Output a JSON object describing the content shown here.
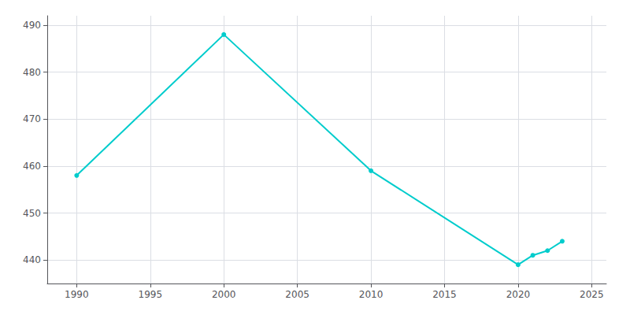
{
  "chart_data": {
    "type": "line",
    "x": [
      1990,
      2000,
      2010,
      2020,
      2021,
      2022,
      2023
    ],
    "values": [
      458,
      488,
      459,
      439,
      441,
      442,
      444
    ],
    "color": "#00CCCC",
    "marker": "circle",
    "xlim": [
      1988,
      2026
    ],
    "ylim": [
      435,
      492
    ],
    "xticks": [
      1990,
      1995,
      2000,
      2005,
      2010,
      2015,
      2020,
      2025
    ],
    "yticks": [
      440,
      450,
      460,
      470,
      480,
      490
    ],
    "grid": true
  }
}
